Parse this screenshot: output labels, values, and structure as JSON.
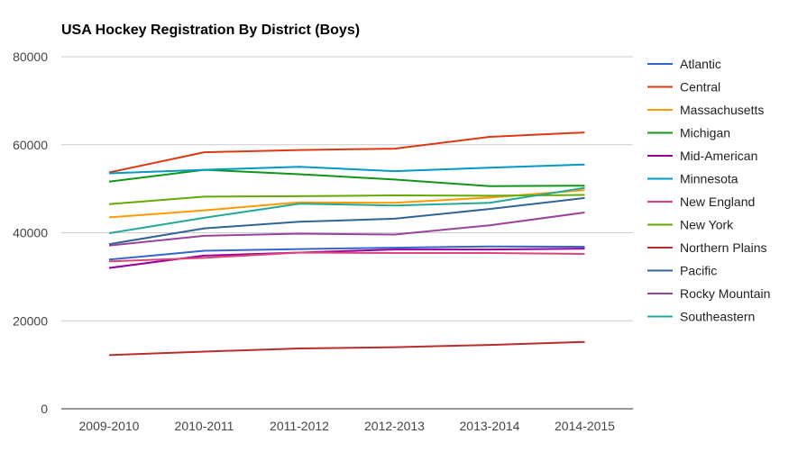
{
  "chart_data": {
    "type": "line",
    "title": "USA Hockey Registration By District (Boys)",
    "xlabel": "",
    "ylabel": "",
    "ylim": [
      0,
      80000
    ],
    "yticks": [
      0,
      20000,
      40000,
      60000,
      80000
    ],
    "grid": true,
    "legend_position": "right",
    "categories": [
      "2009-2010",
      "2010-2011",
      "2011-2012",
      "2012-2013",
      "2013-2014",
      "2014-2015"
    ],
    "series": [
      {
        "name": "Atlantic",
        "color": "#3366cc",
        "values": [
          33900,
          35900,
          36300,
          36600,
          36900,
          36800
        ]
      },
      {
        "name": "Central",
        "color": "#dc3912",
        "values": [
          53700,
          58300,
          58800,
          59100,
          61800,
          62800
        ]
      },
      {
        "name": "Massachusetts",
        "color": "#ff9900",
        "values": [
          43500,
          45100,
          46900,
          46800,
          48000,
          49700
        ]
      },
      {
        "name": "Michigan",
        "color": "#109618",
        "values": [
          51600,
          54300,
          53300,
          52100,
          50600,
          50700
        ]
      },
      {
        "name": "Mid-American",
        "color": "#990099",
        "values": [
          32000,
          34800,
          35500,
          36200,
          36200,
          36400
        ]
      },
      {
        "name": "Minnesota",
        "color": "#0099c6",
        "values": [
          53500,
          54300,
          55000,
          54000,
          54800,
          55500
        ]
      },
      {
        "name": "New England",
        "color": "#dd4477",
        "values": [
          33500,
          34300,
          35500,
          35400,
          35400,
          35200
        ]
      },
      {
        "name": "New York",
        "color": "#66aa00",
        "values": [
          46500,
          48200,
          48300,
          48500,
          48400,
          48600
        ]
      },
      {
        "name": "Northern Plains",
        "color": "#b82e2e",
        "values": [
          12200,
          13000,
          13700,
          14000,
          14500,
          15200
        ]
      },
      {
        "name": "Pacific",
        "color": "#316395",
        "values": [
          37400,
          41000,
          42500,
          43200,
          45400,
          47900
        ]
      },
      {
        "name": "Rocky Mountain",
        "color": "#994499",
        "values": [
          37100,
          39300,
          39800,
          39600,
          41700,
          44600
        ]
      },
      {
        "name": "Southeastern",
        "color": "#22aa99",
        "values": [
          39900,
          43400,
          46600,
          46200,
          46800,
          50200
        ]
      }
    ]
  }
}
